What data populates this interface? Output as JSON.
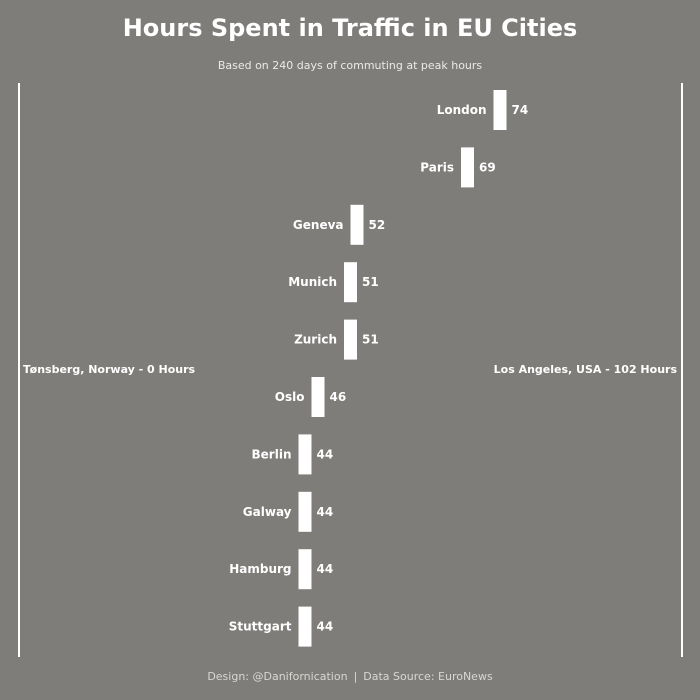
{
  "header": {
    "title": "Hours Spent in Traffic in EU Cities",
    "subtitle": "Based on 240 days of commuting at peak hours"
  },
  "footer": {
    "design": "Design: @Danifornication",
    "separator": "|",
    "source": "Data Source: EuroNews"
  },
  "bounds": {
    "min_label": "Tønsberg, Norway - 0 Hours",
    "max_label": "Los Angeles, USA - 102 Hours"
  },
  "colors": {
    "background": "#7f7d79",
    "marks": "#ffffff"
  },
  "chart_data": {
    "type": "bar",
    "title": "Hours Spent in Traffic in EU Cities",
    "subtitle": "Based on 240 days of commuting at peak hours",
    "xlim": [
      0,
      102
    ],
    "categories": [
      "London",
      "Paris",
      "Geneva",
      "Munich",
      "Zurich",
      "Oslo",
      "Berlin",
      "Galway",
      "Hamburg",
      "Stuttgart"
    ],
    "values": [
      74,
      69,
      52,
      51,
      51,
      46,
      44,
      44,
      44,
      44
    ],
    "grid": false,
    "legend": "none"
  }
}
